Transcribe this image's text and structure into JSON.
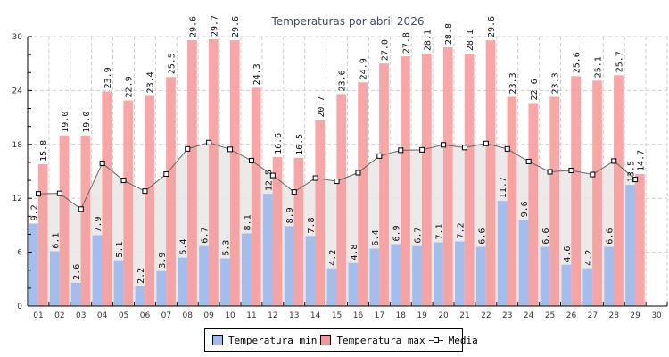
{
  "chart_data": {
    "type": "bar",
    "title": "Temperaturas por abril 2026",
    "xlabel": "",
    "ylabel": "",
    "ylim": [
      0,
      30
    ],
    "yticks": [
      "0",
      "6",
      "12",
      "18",
      "24",
      "30"
    ],
    "grid": true,
    "legend_position": "bottom",
    "categories": [
      "01",
      "02",
      "03",
      "04",
      "05",
      "06",
      "07",
      "08",
      "09",
      "10",
      "11",
      "12",
      "13",
      "14",
      "15",
      "16",
      "17",
      "18",
      "19",
      "20",
      "21",
      "22",
      "23",
      "24",
      "25",
      "26",
      "27",
      "28",
      "29",
      "30"
    ],
    "series": [
      {
        "name": "Temperatura min",
        "type": "bar",
        "color": "#9fbbed",
        "values": [
          9.2,
          6.1,
          2.6,
          7.9,
          5.1,
          2.2,
          3.9,
          5.4,
          6.7,
          5.3,
          8.1,
          12.5,
          8.9,
          7.8,
          4.2,
          4.8,
          6.4,
          6.9,
          6.7,
          7.1,
          7.2,
          6.6,
          11.7,
          9.6,
          6.6,
          4.6,
          4.2,
          6.6,
          13.5,
          null
        ],
        "labels": [
          "9.2",
          "6.1",
          "2.6",
          "7.9",
          "5.1",
          "2.2",
          "3.9",
          "5.4",
          "6.7",
          "5.3",
          "8.1",
          "12.5",
          "8.9",
          "7.8",
          "4.2",
          "4.8",
          "6.4",
          "6.9",
          "6.7",
          "7.1",
          "7.2",
          "6.6",
          "11.7",
          "9.6",
          "6.6",
          "4.6",
          "4.2",
          "6.6",
          "13.5",
          ""
        ]
      },
      {
        "name": "Temperatura max",
        "type": "bar",
        "color": "#f79696",
        "values": [
          15.8,
          19.0,
          19.0,
          23.9,
          22.9,
          23.4,
          25.5,
          29.6,
          29.7,
          29.6,
          24.3,
          16.6,
          16.5,
          20.7,
          23.6,
          24.9,
          27.0,
          27.8,
          28.1,
          28.8,
          28.1,
          29.6,
          23.3,
          22.6,
          23.3,
          25.6,
          25.1,
          25.7,
          14.7,
          null
        ],
        "labels": [
          "15.8",
          "19.0",
          "19.0",
          "23.9",
          "22.9",
          "23.4",
          "25.5",
          "29.6",
          "29.7",
          "29.6",
          "24.3",
          "16.6",
          "16.5",
          "20.7",
          "23.6",
          "24.9",
          "27.0",
          "27.8",
          "28.1",
          "28.8",
          "28.1",
          "29.6",
          "23.3",
          "22.6",
          "23.3",
          "25.6",
          "25.1",
          "25.7",
          "14.7",
          ""
        ]
      },
      {
        "name": "Media",
        "type": "area-line",
        "color": "#666666",
        "fill": "#e6e6e6",
        "values": [
          12.5,
          12.55,
          10.8,
          15.9,
          14.0,
          12.8,
          14.7,
          17.5,
          18.2,
          17.45,
          16.2,
          14.55,
          12.7,
          14.25,
          13.9,
          14.85,
          16.7,
          17.35,
          17.4,
          17.95,
          17.65,
          18.1,
          17.5,
          16.1,
          14.95,
          15.1,
          14.65,
          16.15,
          14.1,
          null
        ]
      }
    ]
  },
  "legend": {
    "items": [
      {
        "label": "Temperatura min",
        "color": "#9fbbed"
      },
      {
        "label": "Temperatura max",
        "color": "#f79696"
      },
      {
        "label": "Media"
      }
    ]
  }
}
